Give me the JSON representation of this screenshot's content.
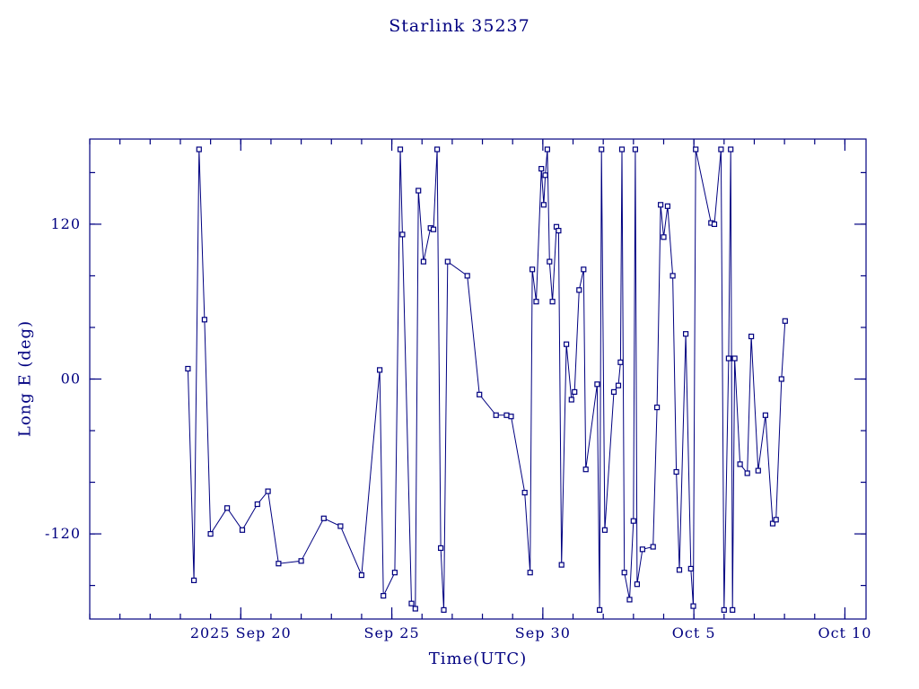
{
  "chart_data": {
    "type": "line",
    "title": "Starlink 35237",
    "xlabel": "Time(UTC)",
    "ylabel": "Long E (deg)",
    "x_unit": "days since 2025 Sep 15 00:00 UTC",
    "xlim": [
      0,
      25.7
    ],
    "ylim": [
      -186,
      186
    ],
    "grid": false,
    "legend": "none",
    "line_color": "#000080",
    "marker": "square",
    "marker_size": 5,
    "x_major_ticks": [
      {
        "value": 5,
        "label": "2025 Sep 20"
      },
      {
        "value": 10,
        "label": "Sep 25"
      },
      {
        "value": 15,
        "label": "Sep 30"
      },
      {
        "value": 20,
        "label": "Oct 5"
      },
      {
        "value": 25,
        "label": "Oct 10"
      }
    ],
    "x_minor_step": 1,
    "y_major_ticks": [
      {
        "value": -120,
        "label": "-120"
      },
      {
        "value": 0,
        "label": "00"
      },
      {
        "value": 120,
        "label": "120"
      }
    ],
    "y_minor_step": 40,
    "points": [
      [
        3.25,
        8
      ],
      [
        3.45,
        -156
      ],
      [
        3.62,
        178
      ],
      [
        3.8,
        46
      ],
      [
        4.0,
        -120
      ],
      [
        4.55,
        -100
      ],
      [
        5.05,
        -117
      ],
      [
        5.55,
        -97
      ],
      [
        5.9,
        -87
      ],
      [
        6.25,
        -143
      ],
      [
        7.0,
        -141
      ],
      [
        7.75,
        -108
      ],
      [
        8.3,
        -114
      ],
      [
        9.0,
        -152
      ],
      [
        9.6,
        7
      ],
      [
        9.72,
        -168
      ],
      [
        10.1,
        -150
      ],
      [
        10.28,
        178
      ],
      [
        10.35,
        112
      ],
      [
        10.65,
        -174
      ],
      [
        10.78,
        -178
      ],
      [
        10.88,
        146
      ],
      [
        11.05,
        91
      ],
      [
        11.28,
        117
      ],
      [
        11.38,
        116
      ],
      [
        11.5,
        178
      ],
      [
        11.62,
        -131
      ],
      [
        11.72,
        -179
      ],
      [
        11.85,
        91
      ],
      [
        12.5,
        80
      ],
      [
        12.9,
        -12
      ],
      [
        13.45,
        -28
      ],
      [
        13.8,
        -28
      ],
      [
        13.95,
        -29
      ],
      [
        14.4,
        -88
      ],
      [
        14.58,
        -150
      ],
      [
        14.65,
        85
      ],
      [
        14.78,
        60
      ],
      [
        14.95,
        163
      ],
      [
        15.03,
        135
      ],
      [
        15.08,
        158
      ],
      [
        15.15,
        178
      ],
      [
        15.22,
        91
      ],
      [
        15.32,
        60
      ],
      [
        15.45,
        118
      ],
      [
        15.52,
        115
      ],
      [
        15.62,
        -144
      ],
      [
        15.78,
        27
      ],
      [
        15.95,
        -16
      ],
      [
        16.05,
        -10
      ],
      [
        16.2,
        69
      ],
      [
        16.35,
        85
      ],
      [
        16.42,
        -70
      ],
      [
        16.8,
        -4
      ],
      [
        16.88,
        -179
      ],
      [
        16.94,
        178
      ],
      [
        17.05,
        -117
      ],
      [
        17.35,
        -10
      ],
      [
        17.5,
        -5
      ],
      [
        17.57,
        13
      ],
      [
        17.62,
        178
      ],
      [
        17.7,
        -150
      ],
      [
        17.87,
        -171
      ],
      [
        18.0,
        -110
      ],
      [
        18.06,
        178
      ],
      [
        18.12,
        -159
      ],
      [
        18.3,
        -132
      ],
      [
        18.65,
        -130
      ],
      [
        18.78,
        -22
      ],
      [
        18.9,
        135
      ],
      [
        19.0,
        110
      ],
      [
        19.13,
        134
      ],
      [
        19.3,
        80
      ],
      [
        19.42,
        -72
      ],
      [
        19.52,
        -148
      ],
      [
        19.73,
        35
      ],
      [
        19.9,
        -147
      ],
      [
        19.98,
        -176
      ],
      [
        20.06,
        178
      ],
      [
        20.57,
        121
      ],
      [
        20.68,
        120
      ],
      [
        20.9,
        178
      ],
      [
        21.0,
        -179
      ],
      [
        21.15,
        16
      ],
      [
        21.22,
        178
      ],
      [
        21.28,
        -179
      ],
      [
        21.35,
        16
      ],
      [
        21.53,
        -66
      ],
      [
        21.77,
        -73
      ],
      [
        21.9,
        33
      ],
      [
        22.13,
        -71
      ],
      [
        22.37,
        -28
      ],
      [
        22.61,
        -112
      ],
      [
        22.72,
        -109
      ],
      [
        22.9,
        0
      ],
      [
        23.02,
        45
      ]
    ]
  }
}
